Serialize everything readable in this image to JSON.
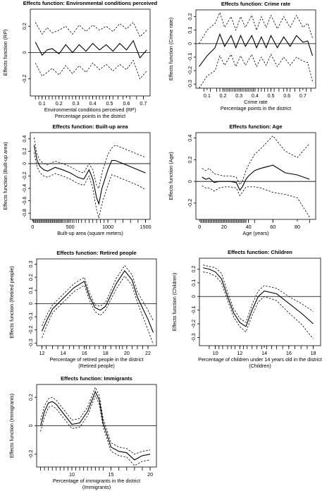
{
  "chart_data": [
    {
      "type": "line",
      "title": "Effects function: Environmental conditions perceived",
      "ylabel": "Effects function (RP)",
      "xlabel": "Environmental conditions perceived (RP)",
      "xlabel2": "Percentage points in the district",
      "xlim": [
        0.03,
        0.74
      ],
      "ylim": [
        -0.33,
        0.33
      ],
      "xticks": [
        0.1,
        0.2,
        0.3,
        0.4,
        0.5,
        0.6,
        0.7
      ],
      "yticks": [
        -0.2,
        0,
        0.2
      ],
      "x": [
        0.06,
        0.1,
        0.13,
        0.16,
        0.2,
        0.24,
        0.28,
        0.32,
        0.36,
        0.4,
        0.44,
        0.48,
        0.52,
        0.56,
        0.6,
        0.64,
        0.68,
        0.72
      ],
      "series": [
        {
          "role": "estimate",
          "values": [
            0.08,
            -0.02,
            0.02,
            0.03,
            -0.01,
            0.06,
            0.0,
            0.06,
            0.01,
            0.07,
            0.02,
            0.06,
            0.01,
            0.07,
            0.02,
            0.09,
            -0.04,
            0.02
          ]
        },
        {
          "role": "upper",
          "values": [
            0.23,
            0.14,
            0.19,
            0.15,
            0.17,
            0.2,
            0.14,
            0.21,
            0.16,
            0.21,
            0.17,
            0.2,
            0.16,
            0.22,
            0.18,
            0.23,
            0.12,
            0.17
          ]
        },
        {
          "role": "lower",
          "values": [
            -0.08,
            -0.18,
            -0.15,
            -0.12,
            -0.17,
            -0.1,
            -0.16,
            -0.1,
            -0.15,
            -0.08,
            -0.13,
            -0.09,
            -0.14,
            -0.09,
            -0.13,
            -0.06,
            -0.2,
            -0.14
          ]
        }
      ],
      "rug": [
        0.06,
        0.08,
        0.1,
        0.12,
        0.14,
        0.16,
        0.18,
        0.2,
        0.22,
        0.24,
        0.26,
        0.28,
        0.3,
        0.32,
        0.34,
        0.36,
        0.38,
        0.4,
        0.42,
        0.44,
        0.46,
        0.48,
        0.5,
        0.52,
        0.55,
        0.58,
        0.62,
        0.66,
        0.7
      ]
    },
    {
      "type": "line",
      "title": "Effects function: Crime rate",
      "ylabel": "Effects function (Crime rate)",
      "xlabel": "Crime rate",
      "xlabel2": "Percentage points in the district",
      "xlim": [
        0.03,
        0.78
      ],
      "ylim": [
        -0.33,
        0.25
      ],
      "xticks": [
        0.1,
        0.2,
        0.3,
        0.4,
        0.5,
        0.6,
        0.7
      ],
      "yticks": [
        -0.3,
        -0.2,
        -0.1,
        0,
        0.1,
        0.2
      ],
      "x": [
        0.05,
        0.1,
        0.15,
        0.18,
        0.21,
        0.25,
        0.28,
        0.31,
        0.34,
        0.38,
        0.41,
        0.44,
        0.47,
        0.5,
        0.54,
        0.58,
        0.62,
        0.66,
        0.7,
        0.73,
        0.76
      ],
      "series": [
        {
          "role": "estimate",
          "values": [
            -0.17,
            -0.09,
            -0.03,
            0.07,
            -0.02,
            0.06,
            -0.03,
            0.06,
            -0.02,
            0.06,
            -0.03,
            0.05,
            -0.03,
            0.06,
            -0.03,
            0.05,
            -0.02,
            0.06,
            0.01,
            0.02,
            -0.09
          ]
        },
        {
          "role": "upper",
          "values": [
            0.0,
            0.1,
            0.15,
            0.23,
            0.12,
            0.2,
            0.1,
            0.2,
            0.12,
            0.21,
            0.1,
            0.2,
            0.12,
            0.21,
            0.11,
            0.2,
            0.12,
            0.21,
            0.12,
            0.15,
            0.04
          ]
        },
        {
          "role": "lower",
          "values": [
            -0.33,
            -0.24,
            -0.2,
            -0.09,
            -0.16,
            -0.08,
            -0.17,
            -0.09,
            -0.16,
            -0.08,
            -0.17,
            -0.1,
            -0.16,
            -0.08,
            -0.17,
            -0.1,
            -0.16,
            -0.1,
            -0.13,
            -0.14,
            -0.28
          ]
        }
      ],
      "rug": [
        0.08,
        0.12,
        0.16,
        0.18,
        0.2,
        0.21,
        0.22,
        0.23,
        0.24,
        0.25,
        0.26,
        0.27,
        0.28,
        0.29,
        0.3,
        0.31,
        0.32,
        0.33,
        0.34,
        0.35,
        0.36,
        0.37,
        0.38,
        0.39,
        0.4,
        0.42,
        0.44,
        0.46,
        0.48,
        0.5,
        0.52,
        0.55,
        0.58,
        0.6,
        0.62,
        0.65,
        0.68,
        0.72,
        0.75
      ]
    },
    {
      "type": "line",
      "title": "Effects function: Built-up area",
      "ylabel": "Effects function (Built-up area)",
      "xlabel": "Built-up area (square meters)",
      "xlabel2": "",
      "xlim": [
        -30,
        1560
      ],
      "ylim": [
        -0.9,
        0.5
      ],
      "xticks": [
        0,
        500,
        1000,
        1500
      ],
      "yticks": [
        -0.8,
        -0.6,
        -0.4,
        -0.2,
        0,
        0.2,
        0.4
      ],
      "x": [
        20,
        60,
        100,
        150,
        200,
        300,
        400,
        500,
        600,
        680,
        750,
        800,
        850,
        880,
        920,
        1000,
        1050,
        1100,
        1200,
        1300,
        1400,
        1500
      ],
      "series": [
        {
          "role": "estimate",
          "values": [
            0.3,
            0.05,
            -0.05,
            -0.1,
            -0.12,
            -0.06,
            -0.1,
            -0.15,
            -0.22,
            -0.25,
            -0.1,
            -0.25,
            -0.55,
            -0.65,
            -0.4,
            -0.1,
            0.05,
            0.05,
            0.0,
            -0.05,
            -0.1,
            -0.15
          ]
        },
        {
          "role": "upper",
          "values": [
            0.42,
            0.15,
            0.05,
            0.0,
            -0.02,
            0.04,
            0.0,
            -0.05,
            -0.12,
            -0.15,
            0.0,
            -0.1,
            -0.35,
            -0.4,
            -0.15,
            0.15,
            0.25,
            0.3,
            0.25,
            0.2,
            0.15,
            0.1
          ]
        },
        {
          "role": "lower",
          "values": [
            0.18,
            -0.05,
            -0.15,
            -0.2,
            -0.22,
            -0.16,
            -0.2,
            -0.25,
            -0.32,
            -0.35,
            -0.2,
            -0.4,
            -0.75,
            -0.88,
            -0.65,
            -0.35,
            -0.18,
            -0.2,
            -0.25,
            -0.3,
            -0.35,
            -0.42
          ]
        }
      ],
      "rug": [
        10,
        25,
        40,
        55,
        70,
        85,
        100,
        115,
        130,
        145,
        160,
        175,
        190,
        205,
        220,
        235,
        250,
        265,
        280,
        295,
        310,
        325,
        340,
        355,
        370,
        385,
        400,
        420,
        440,
        460,
        480,
        500,
        525,
        550,
        580,
        610,
        650,
        700,
        750,
        800,
        850,
        900,
        950,
        1000,
        1100,
        1200,
        1300,
        1400,
        1500
      ]
    },
    {
      "type": "line",
      "title": "Effects function: Age",
      "ylabel": "Effects function (Age)",
      "xlabel": "Age (years)",
      "xlabel2": "",
      "xlim": [
        -3,
        95
      ],
      "ylim": [
        -0.35,
        0.45
      ],
      "xticks": [
        0,
        20,
        40,
        60,
        80
      ],
      "yticks": [
        -0.2,
        0,
        0.2,
        0.4
      ],
      "x": [
        2,
        5,
        8,
        12,
        16,
        20,
        25,
        30,
        33,
        35,
        38,
        40,
        45,
        50,
        60,
        70,
        80,
        90
      ],
      "series": [
        {
          "role": "estimate",
          "values": [
            0.04,
            0.02,
            0.03,
            -0.01,
            0.0,
            0.0,
            0.0,
            -0.01,
            -0.08,
            -0.05,
            0.02,
            0.05,
            0.1,
            0.12,
            0.15,
            0.08,
            0.06,
            0.02
          ]
        },
        {
          "role": "upper",
          "values": [
            0.12,
            0.1,
            0.12,
            0.07,
            0.06,
            0.05,
            0.05,
            0.04,
            -0.03,
            0.0,
            0.1,
            0.15,
            0.25,
            0.3,
            0.42,
            0.28,
            0.22,
            0.35
          ]
        },
        {
          "role": "lower",
          "values": [
            -0.04,
            -0.06,
            -0.06,
            -0.09,
            -0.06,
            -0.05,
            -0.05,
            -0.06,
            -0.13,
            -0.1,
            -0.05,
            -0.05,
            -0.05,
            -0.06,
            -0.1,
            -0.12,
            -0.15,
            -0.33
          ]
        }
      ],
      "rug": [
        1,
        2,
        3,
        4,
        5,
        6,
        7,
        8,
        9,
        10,
        11,
        12,
        13,
        14,
        15,
        16,
        17,
        18,
        19,
        20,
        21,
        22,
        23,
        24,
        25,
        26,
        27,
        28,
        29,
        30,
        31,
        32,
        33,
        34,
        35,
        36,
        37,
        38,
        40,
        45,
        60,
        90
      ]
    },
    {
      "type": "line",
      "title": "Effects function: Retired people",
      "ylabel": "Effects function (Retired people)",
      "xlabel": "Percentage of retired people in the district",
      "xlabel2": "(Retired people)",
      "xlim": [
        11.5,
        22.8
      ],
      "ylim": [
        -0.32,
        0.34
      ],
      "xticks": [
        12,
        14,
        16,
        18,
        20,
        22
      ],
      "yticks": [
        -0.3,
        -0.2,
        -0.1,
        0,
        0.1,
        0.2,
        0.3
      ],
      "x": [
        12,
        12.5,
        13,
        14,
        15,
        16,
        16.5,
        17,
        17.5,
        18,
        19,
        19.8,
        20.5,
        21,
        22,
        22.5
      ],
      "series": [
        {
          "role": "estimate",
          "values": [
            -0.21,
            -0.12,
            -0.04,
            0.04,
            0.12,
            0.17,
            0.05,
            -0.03,
            -0.05,
            -0.02,
            0.15,
            0.25,
            0.18,
            0.05,
            -0.12,
            -0.22
          ]
        },
        {
          "role": "upper",
          "values": [
            -0.17,
            -0.08,
            -0.01,
            0.07,
            0.15,
            0.2,
            0.08,
            -0.01,
            -0.02,
            0.01,
            0.19,
            0.29,
            0.22,
            0.09,
            -0.05,
            -0.13
          ]
        },
        {
          "role": "lower",
          "values": [
            -0.26,
            -0.16,
            -0.07,
            0.01,
            0.09,
            0.14,
            0.02,
            -0.06,
            -0.09,
            -0.05,
            0.11,
            0.21,
            0.14,
            0.01,
            -0.2,
            -0.31
          ]
        }
      ],
      "rug": [
        12,
        12.4,
        13,
        13.5,
        14,
        14.6,
        15,
        15.5,
        16,
        16.2,
        16.5,
        17,
        17.4,
        17.8,
        18,
        18.5,
        19,
        19.3,
        19.6,
        20,
        20.5,
        21,
        21.5,
        22
      ]
    },
    {
      "type": "line",
      "title": "Effects function: Children",
      "ylabel": "Effects function (Children)",
      "xlabel": "Percentage of children under 14 years old in the district",
      "xlabel2": "(Children)",
      "xlim": [
        8.7,
        18.6
      ],
      "ylim": [
        -0.36,
        0.28
      ],
      "xticks": [
        10,
        12,
        14,
        16,
        18
      ],
      "yticks": [
        -0.3,
        -0.2,
        -0.1,
        0,
        0.1,
        0.2
      ],
      "x": [
        9,
        9.5,
        10,
        10.5,
        11,
        11.5,
        12,
        12.5,
        13,
        13.5,
        14,
        15,
        16,
        17,
        18
      ],
      "series": [
        {
          "role": "estimate",
          "values": [
            0.21,
            0.2,
            0.18,
            0.13,
            0.0,
            -0.12,
            -0.19,
            -0.22,
            -0.1,
            0.0,
            0.04,
            0.02,
            -0.05,
            -0.12,
            -0.2
          ]
        },
        {
          "role": "upper",
          "values": [
            0.23,
            0.22,
            0.21,
            0.17,
            0.03,
            -0.09,
            -0.16,
            -0.19,
            -0.06,
            0.04,
            0.08,
            0.06,
            0.0,
            -0.05,
            -0.11
          ]
        },
        {
          "role": "lower",
          "values": [
            0.18,
            0.17,
            0.15,
            0.1,
            -0.03,
            -0.15,
            -0.22,
            -0.26,
            -0.14,
            -0.04,
            0.0,
            -0.03,
            -0.12,
            -0.2,
            -0.31
          ]
        }
      ],
      "rug": [
        9.5,
        10,
        10.3,
        10.6,
        11,
        11.3,
        11.6,
        12,
        12.3,
        12.6,
        13,
        13.4,
        13.8,
        14.2,
        14.6,
        15,
        15.5,
        16,
        16.5,
        17,
        17.5,
        18
      ]
    },
    {
      "type": "line",
      "title": "Effects function: Immigrants",
      "ylabel": "Effects function (Immigrants)",
      "xlabel": "Percentage of immigrants in the district",
      "xlabel2": "(Immigrants)",
      "xlim": [
        5.5,
        20.8
      ],
      "ylim": [
        -0.29,
        0.29
      ],
      "xticks": [
        10,
        15,
        20
      ],
      "yticks": [
        -0.2,
        0,
        0.2
      ],
      "x": [
        6,
        6.5,
        7,
        7.5,
        8,
        9,
        10,
        11,
        12,
        13,
        13.5,
        14,
        15,
        16,
        17,
        18,
        19,
        20
      ],
      "series": [
        {
          "role": "estimate",
          "values": [
            0.0,
            0.1,
            0.16,
            0.17,
            0.15,
            0.08,
            0.01,
            0.02,
            0.1,
            0.24,
            0.18,
            0.02,
            -0.15,
            -0.18,
            -0.19,
            -0.24,
            -0.21,
            -0.2
          ]
        },
        {
          "role": "upper",
          "values": [
            0.04,
            0.14,
            0.19,
            0.2,
            0.18,
            0.11,
            0.04,
            0.05,
            0.13,
            0.27,
            0.21,
            0.05,
            -0.12,
            -0.15,
            -0.16,
            -0.2,
            -0.18,
            -0.17
          ]
        },
        {
          "role": "lower",
          "values": [
            -0.04,
            0.06,
            0.13,
            0.14,
            0.12,
            0.05,
            -0.02,
            -0.01,
            0.07,
            0.21,
            0.15,
            -0.01,
            -0.18,
            -0.21,
            -0.22,
            -0.28,
            -0.25,
            -0.24
          ]
        }
      ],
      "rug": [
        6,
        6.5,
        7,
        7.5,
        8,
        8.5,
        9,
        9.5,
        10,
        10.5,
        11,
        11.5,
        12,
        12.5,
        13,
        13.5,
        14,
        15,
        16,
        17,
        18,
        19,
        20
      ]
    }
  ]
}
